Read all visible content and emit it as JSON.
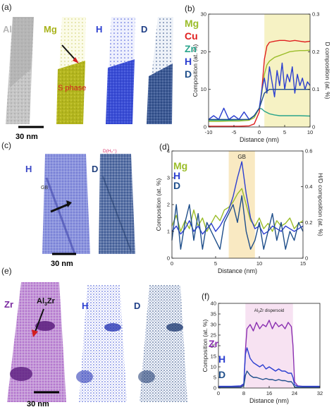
{
  "panels": {
    "a": {
      "letter": "(a)",
      "maps": [
        {
          "label": "Al",
          "color": "#b7b7b7"
        },
        {
          "label": "Mg",
          "color": "#a8b21a"
        },
        {
          "label": "H",
          "color": "#2c3fd0"
        },
        {
          "label": "D",
          "color": "#1e3e86"
        }
      ],
      "annotation": "S phase",
      "scale_bar": "30 nm"
    },
    "c": {
      "letter": "(c)",
      "maps": [
        {
          "label": "H",
          "color": "#5a63c9"
        },
        {
          "label": "D",
          "color": "#22427e"
        }
      ],
      "gb_label": "GB",
      "d_label": "D(H₂⁺)",
      "scale_bar": "30 nm"
    },
    "e": {
      "letter": "(e)",
      "maps": [
        {
          "label": "Zr",
          "color": "#9a3ec0"
        },
        {
          "label": "H",
          "color": "#2c3fd0"
        },
        {
          "label": "D",
          "color": "#1e3e86"
        }
      ],
      "annotation_base": "Al",
      "annotation_sub": "3",
      "annotation_rest": "Zr",
      "scale_bar": "30 nm"
    }
  },
  "chart_data": [
    {
      "id": "b",
      "letter": "(b)",
      "type": "line",
      "xlabel": "Distance (nm)",
      "ylabel": "Composition (at. %)",
      "y2label": "D composition (at. %)",
      "xlim": [
        -10,
        10
      ],
      "ylim": [
        0,
        30
      ],
      "y2lim": [
        0,
        0.3
      ],
      "xticks": [
        -10,
        -5,
        0,
        5,
        10
      ],
      "yticks": [
        0,
        10,
        20,
        30
      ],
      "y2ticks": [
        0,
        0.1,
        0.2,
        0.3
      ],
      "shaded_region": [
        1,
        10
      ],
      "shade_color": "#f6f2c4",
      "legend": [
        {
          "name": "Mg",
          "color": "#9bbd2a"
        },
        {
          "name": "Cu",
          "color": "#e02020"
        },
        {
          "name": "Zn",
          "color": "#2aa58c"
        },
        {
          "name": "H",
          "color": "#2c3fd0"
        },
        {
          "name": "D",
          "color": "#1e4e8a"
        }
      ],
      "series": [
        {
          "name": "Cu",
          "axis": "left",
          "color": "#e02020",
          "x": [
            -10,
            -8,
            -6,
            -4,
            -2,
            -1,
            0,
            0.5,
            1,
            1.5,
            2,
            3,
            4,
            5,
            6,
            7,
            8,
            9,
            10
          ],
          "y": [
            0.2,
            0.2,
            0.2,
            0.2,
            0.3,
            0.8,
            4,
            10,
            18,
            21.5,
            22.5,
            22.8,
            23,
            23,
            22.8,
            23,
            22.8,
            22.6,
            22.8
          ]
        },
        {
          "name": "Mg",
          "axis": "left",
          "color": "#9bbd2a",
          "x": [
            -10,
            -8,
            -6,
            -4,
            -2,
            -1,
            0,
            0.5,
            1,
            1.5,
            2,
            3,
            4,
            5,
            6,
            7,
            8,
            9,
            10
          ],
          "y": [
            1.5,
            1.5,
            1.6,
            1.6,
            1.8,
            2.5,
            5,
            9,
            14,
            16.5,
            17.5,
            18.5,
            19,
            19.5,
            20,
            20.2,
            20.3,
            20.3,
            20.4
          ]
        },
        {
          "name": "Zn",
          "axis": "left",
          "color": "#2aa58c",
          "x": [
            -10,
            -8,
            -6,
            -4,
            -2,
            -1,
            0,
            0.5,
            1,
            2,
            3,
            4,
            6,
            8,
            10
          ],
          "y": [
            1.8,
            1.8,
            1.8,
            1.9,
            2,
            3,
            5,
            4.8,
            4.2,
            3.5,
            3.2,
            3,
            3,
            3,
            2.9
          ]
        },
        {
          "name": "H",
          "axis": "right",
          "color": "#2c3fd0",
          "x": [
            -10,
            -9,
            -8,
            -7,
            -6,
            -5,
            -4,
            -3,
            -2,
            -1,
            0,
            0.5,
            1,
            1.5,
            2,
            2.5,
            3,
            3.5,
            4,
            4.5,
            5,
            5.5,
            6,
            6.5,
            7,
            7.5,
            8,
            8.5,
            9,
            9.5,
            10
          ],
          "y": [
            0.02,
            0.03,
            0.02,
            0.05,
            0.02,
            0.03,
            0.02,
            0.04,
            0.02,
            0.03,
            0.05,
            0.1,
            0.13,
            0.09,
            0.16,
            0.12,
            0.08,
            0.15,
            0.11,
            0.17,
            0.1,
            0.14,
            0.12,
            0.16,
            0.09,
            0.14,
            0.11,
            0.13,
            0.1,
            0.12,
            0.11
          ]
        },
        {
          "name": "D",
          "axis": "right",
          "color": "#1e4e8a",
          "x": [
            -10,
            -8,
            -6,
            -4,
            -2,
            -1,
            0,
            1,
            2,
            3,
            4,
            5,
            6,
            7,
            8,
            9,
            10
          ],
          "y": [
            0.02,
            0.02,
            0.02,
            0.02,
            0.02,
            0.03,
            0.05,
            0.09,
            0.1,
            0.1,
            0.1,
            0.1,
            0.1,
            0.1,
            0.1,
            0.1,
            0.1
          ]
        }
      ]
    },
    {
      "id": "d",
      "letter": "(d)",
      "type": "line",
      "xlabel": "Distance (nm)",
      "ylabel": "Composition (at. %)",
      "y2label": "H/D composition (at. %)",
      "xlim": [
        0,
        15
      ],
      "ylim": [
        0,
        4
      ],
      "y2lim": [
        0,
        0.6
      ],
      "xticks": [
        0,
        5,
        10,
        15
      ],
      "yticks": [
        0,
        1,
        2,
        3,
        4
      ],
      "y2ticks": [
        0,
        0.2,
        0.4,
        0.6
      ],
      "shaded_region": [
        6.5,
        9.5
      ],
      "shade_color": "#f9e9c2",
      "shade_label": "GB",
      "legend": [
        {
          "name": "Mg",
          "color": "#9bbd2a"
        },
        {
          "name": "H",
          "color": "#2c3fd0"
        },
        {
          "name": "D",
          "color": "#1e4e8a"
        }
      ],
      "series": [
        {
          "name": "Mg",
          "axis": "left",
          "color": "#9bbd2a",
          "x": [
            0,
            0.5,
            1,
            1.5,
            2,
            2.5,
            3,
            3.5,
            4,
            4.5,
            5,
            5.5,
            6,
            6.5,
            7,
            7.5,
            8,
            8.5,
            9,
            9.5,
            10,
            10.5,
            11,
            11.5,
            12,
            12.5,
            13,
            13.5,
            14,
            14.5,
            15
          ],
          "y": [
            1.2,
            1.6,
            1.0,
            1.4,
            1.1,
            1.8,
            1.2,
            1.5,
            1.0,
            1.3,
            1.6,
            1.4,
            1.8,
            1.9,
            2.1,
            2.4,
            2.6,
            2.0,
            1.4,
            1.2,
            1.5,
            1.1,
            1.3,
            1.0,
            1.4,
            1.2,
            1.3,
            1.5,
            1.1,
            1.3,
            1.4
          ]
        },
        {
          "name": "H",
          "axis": "left",
          "color": "#2c3fd0",
          "x": [
            0,
            0.5,
            1,
            1.5,
            2,
            2.5,
            3,
            3.5,
            4,
            4.5,
            5,
            5.5,
            6,
            6.5,
            7,
            7.5,
            8,
            8.5,
            9,
            9.5,
            10,
            10.5,
            11,
            11.5,
            12,
            12.5,
            13,
            13.5,
            14,
            14.5,
            15
          ],
          "y": [
            1.0,
            1.2,
            0.9,
            1.1,
            1.4,
            1.0,
            1.2,
            0.9,
            1.1,
            1.3,
            1.0,
            1.2,
            1.5,
            1.8,
            2.3,
            3.0,
            3.6,
            2.4,
            1.5,
            1.1,
            1.2,
            0.9,
            1.0,
            1.2,
            1.1,
            1.0,
            1.2,
            1.1,
            1.0,
            1.1,
            1.2
          ]
        },
        {
          "name": "D",
          "axis": "right",
          "color": "#1e4e8a",
          "x": [
            0,
            0.5,
            1,
            1.5,
            2,
            2.5,
            3,
            3.5,
            4,
            4.5,
            5,
            5.5,
            6,
            6.5,
            7,
            7.5,
            8,
            8.5,
            9,
            9.5,
            10,
            10.5,
            11,
            11.5,
            12,
            12.5,
            13,
            13.5,
            14,
            14.5,
            15
          ],
          "y": [
            0.1,
            0.3,
            0.05,
            0.2,
            0.3,
            0.1,
            0.25,
            0.05,
            0.2,
            0.15,
            0.1,
            0.05,
            0.2,
            0.25,
            0.3,
            0.2,
            0.35,
            0.15,
            0.05,
            0.1,
            0.2,
            0.05,
            0.15,
            0.25,
            0.1,
            0.2,
            0.05,
            0.15,
            0.1,
            0.2,
            0.15
          ]
        }
      ]
    },
    {
      "id": "f",
      "letter": "(f)",
      "type": "line",
      "xlabel": "Distance (nm)",
      "ylabel": "Composition (at. %)",
      "xlim": [
        0,
        32
      ],
      "ylim": [
        0,
        40
      ],
      "xticks": [
        0,
        8,
        16,
        24,
        32
      ],
      "yticks": [
        0,
        5,
        10,
        15,
        20,
        25,
        30,
        35,
        40
      ],
      "shaded_region": [
        8.5,
        23.5
      ],
      "shade_color": "#f7e2f2",
      "shade_label_base": "Al",
      "shade_label_sub": "3",
      "shade_label_rest": "Zr dispersoid",
      "legend": [
        {
          "name": "Zr",
          "color": "#8a2fb0"
        },
        {
          "name": "H",
          "color": "#2c3fd0"
        },
        {
          "name": "D",
          "color": "#1e4e8a"
        }
      ],
      "series": [
        {
          "name": "Zr",
          "axis": "left",
          "color": "#8a2fb0",
          "x": [
            0,
            4,
            7,
            8,
            8.5,
            9,
            10,
            11,
            12,
            13,
            14,
            15,
            16,
            17,
            18,
            19,
            20,
            21,
            22,
            23,
            23.5,
            24,
            25,
            28,
            32
          ],
          "y": [
            0.5,
            0.5,
            0.8,
            1.5,
            18,
            28,
            30,
            27,
            31,
            28,
            30,
            29,
            32,
            28,
            31,
            29,
            30,
            28,
            31,
            29,
            20,
            3,
            1,
            0.5,
            0.5
          ]
        },
        {
          "name": "H",
          "axis": "left",
          "color": "#2c3fd0",
          "x": [
            0,
            4,
            7,
            8,
            8.5,
            9,
            10,
            11,
            12,
            13,
            14,
            15,
            16,
            17,
            18,
            19,
            20,
            21,
            22,
            23,
            23.5,
            24,
            25,
            28,
            32
          ],
          "y": [
            0.8,
            0.8,
            1,
            2,
            16,
            19,
            14,
            12,
            11,
            10,
            11,
            9,
            10,
            9,
            8,
            9,
            8,
            8,
            7,
            7,
            5,
            1.5,
            0.8,
            0.8,
            0.8
          ]
        },
        {
          "name": "D",
          "axis": "left",
          "color": "#1e4e8a",
          "x": [
            0,
            4,
            7,
            8,
            8.5,
            9,
            10,
            11,
            12,
            13,
            14,
            15,
            16,
            17,
            18,
            19,
            20,
            21,
            22,
            23,
            23.5,
            24,
            25,
            28,
            32
          ],
          "y": [
            0.3,
            0.3,
            0.4,
            1,
            6,
            8,
            6,
            5,
            5,
            4.5,
            4,
            4.5,
            4,
            4,
            3.5,
            4,
            3.5,
            3.5,
            3,
            3,
            2,
            0.5,
            0.3,
            0.3,
            0.3
          ]
        }
      ]
    }
  ]
}
